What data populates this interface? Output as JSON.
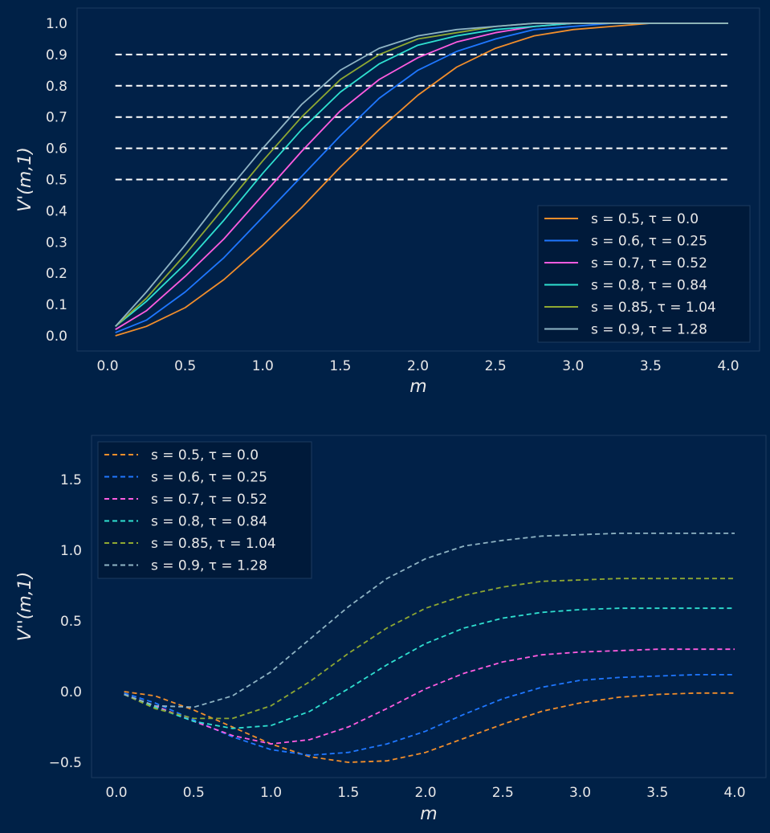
{
  "chart_data": [
    {
      "type": "line",
      "xlabel": "m",
      "ylabel": "V'(m,1)",
      "xlim": [
        0.0,
        4.0
      ],
      "ylim": [
        0.0,
        1.0
      ],
      "x_ticks": [
        "0.0",
        "0.5",
        "1.0",
        "1.5",
        "2.0",
        "2.5",
        "3.0",
        "3.5",
        "4.0"
      ],
      "y_ticks": [
        "0.0",
        "0.1",
        "0.2",
        "0.3",
        "0.4",
        "0.5",
        "0.6",
        "0.7",
        "0.8",
        "0.9",
        "1.0"
      ],
      "grid": false,
      "legend_position": "lower-right",
      "reference_lines": [
        {
          "y": 0.5,
          "x_range": [
            0.05,
            4.0
          ],
          "style": "dashed",
          "color": "#ffffff"
        },
        {
          "y": 0.6,
          "x_range": [
            0.05,
            4.0
          ],
          "style": "dashed",
          "color": "#ffffff"
        },
        {
          "y": 0.7,
          "x_range": [
            0.05,
            4.0
          ],
          "style": "dashed",
          "color": "#ffffff"
        },
        {
          "y": 0.8,
          "x_range": [
            0.05,
            4.0
          ],
          "style": "dashed",
          "color": "#ffffff"
        },
        {
          "y": 0.9,
          "x_range": [
            0.05,
            4.0
          ],
          "style": "dashed",
          "color": "#ffffff"
        }
      ],
      "x": [
        0.05,
        0.25,
        0.5,
        0.75,
        1.0,
        1.25,
        1.5,
        1.75,
        2.0,
        2.25,
        2.5,
        2.75,
        3.0,
        3.25,
        3.5,
        3.75,
        4.0
      ],
      "series": [
        {
          "name": "s = 0.5, τ = 0.0",
          "color": "#f28e2b",
          "style": "solid",
          "values": [
            0.0,
            0.03,
            0.09,
            0.18,
            0.29,
            0.41,
            0.54,
            0.66,
            0.77,
            0.86,
            0.92,
            0.96,
            0.98,
            0.99,
            1.0,
            1.0,
            1.0
          ]
        },
        {
          "name": "s = 0.6, τ = 0.25",
          "color": "#1f77ff",
          "style": "solid",
          "values": [
            0.01,
            0.05,
            0.14,
            0.25,
            0.38,
            0.51,
            0.64,
            0.76,
            0.85,
            0.91,
            0.95,
            0.98,
            0.99,
            1.0,
            1.0,
            1.0,
            1.0
          ]
        },
        {
          "name": "s = 0.7, τ = 0.52",
          "color": "#ff5ce0",
          "style": "solid",
          "values": [
            0.02,
            0.08,
            0.19,
            0.31,
            0.45,
            0.59,
            0.72,
            0.82,
            0.89,
            0.94,
            0.97,
            0.99,
            1.0,
            1.0,
            1.0,
            1.0,
            1.0
          ]
        },
        {
          "name": "s = 0.8, τ = 0.84",
          "color": "#2fe0d0",
          "style": "solid",
          "values": [
            0.03,
            0.11,
            0.23,
            0.37,
            0.52,
            0.66,
            0.78,
            0.87,
            0.93,
            0.96,
            0.98,
            0.99,
            1.0,
            1.0,
            1.0,
            1.0,
            1.0
          ]
        },
        {
          "name": "s = 0.85, τ = 1.04",
          "color": "#8fa832",
          "style": "solid",
          "values": [
            0.03,
            0.12,
            0.26,
            0.41,
            0.56,
            0.7,
            0.82,
            0.9,
            0.95,
            0.97,
            0.99,
            1.0,
            1.0,
            1.0,
            1.0,
            1.0,
            1.0
          ]
        },
        {
          "name": "s = 0.9, τ = 1.28",
          "color": "#8fb4c4",
          "style": "solid",
          "values": [
            0.03,
            0.14,
            0.29,
            0.45,
            0.6,
            0.74,
            0.85,
            0.92,
            0.96,
            0.98,
            0.99,
            1.0,
            1.0,
            1.0,
            1.0,
            1.0,
            1.0
          ]
        }
      ]
    },
    {
      "type": "line",
      "xlabel": "m",
      "ylabel": "V''(m,1)",
      "xlim": [
        0.0,
        4.0
      ],
      "ylim": [
        -0.55,
        1.8
      ],
      "x_ticks": [
        "0.0",
        "0.5",
        "1.0",
        "1.5",
        "2.0",
        "2.5",
        "3.0",
        "3.5",
        "4.0"
      ],
      "y_ticks": [
        "−0.5",
        "0.0",
        "0.5",
        "1.0",
        "1.5"
      ],
      "grid": false,
      "legend_position": "upper-left",
      "x": [
        0.05,
        0.25,
        0.5,
        0.75,
        1.0,
        1.25,
        1.5,
        1.75,
        2.0,
        2.25,
        2.5,
        2.75,
        3.0,
        3.25,
        3.5,
        3.75,
        4.0
      ],
      "series": [
        {
          "name": "s = 0.5, τ = 0.0",
          "color": "#f28e2b",
          "style": "dashed",
          "values": [
            0.0,
            -0.03,
            -0.13,
            -0.25,
            -0.37,
            -0.46,
            -0.5,
            -0.49,
            -0.43,
            -0.33,
            -0.23,
            -0.14,
            -0.08,
            -0.04,
            -0.02,
            -0.01,
            -0.01
          ]
        },
        {
          "name": "s = 0.6, τ = 0.25",
          "color": "#1f77ff",
          "style": "dashed",
          "values": [
            -0.01,
            -0.08,
            -0.2,
            -0.32,
            -0.41,
            -0.45,
            -0.43,
            -0.37,
            -0.28,
            -0.16,
            -0.05,
            0.03,
            0.08,
            0.1,
            0.11,
            0.12,
            0.12
          ]
        },
        {
          "name": "s = 0.7, τ = 0.52",
          "color": "#ff5ce0",
          "style": "dashed",
          "values": [
            -0.02,
            -0.1,
            -0.21,
            -0.31,
            -0.37,
            -0.34,
            -0.25,
            -0.12,
            0.02,
            0.13,
            0.21,
            0.26,
            0.28,
            0.29,
            0.3,
            0.3,
            0.3
          ]
        },
        {
          "name": "s = 0.8, τ = 0.84",
          "color": "#2fe0d0",
          "style": "dashed",
          "values": [
            -0.02,
            -0.11,
            -0.21,
            -0.26,
            -0.24,
            -0.14,
            0.02,
            0.19,
            0.34,
            0.45,
            0.52,
            0.56,
            0.58,
            0.59,
            0.59,
            0.59,
            0.59
          ]
        },
        {
          "name": "s = 0.85, τ = 1.04",
          "color": "#8fa832",
          "style": "dashed",
          "values": [
            -0.02,
            -0.12,
            -0.19,
            -0.19,
            -0.1,
            0.07,
            0.27,
            0.45,
            0.59,
            0.68,
            0.74,
            0.78,
            0.79,
            0.8,
            0.8,
            0.8,
            0.8
          ]
        },
        {
          "name": "s = 0.9, τ = 1.28",
          "color": "#8fb4c4",
          "style": "dashed",
          "values": [
            -0.02,
            -0.1,
            -0.11,
            -0.03,
            0.14,
            0.37,
            0.6,
            0.8,
            0.94,
            1.03,
            1.07,
            1.1,
            1.11,
            1.12,
            1.12,
            1.12,
            1.12
          ]
        }
      ]
    }
  ]
}
